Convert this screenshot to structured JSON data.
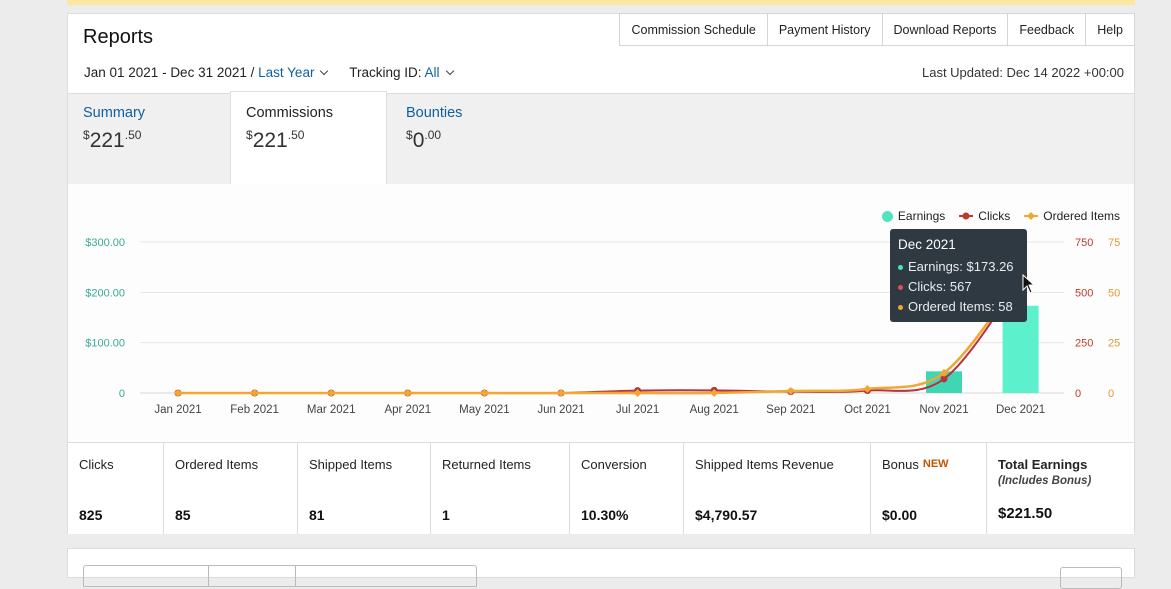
{
  "header": {
    "title": "Reports",
    "tabs": [
      "Commission Schedule",
      "Payment History",
      "Download Reports",
      "Feedback",
      "Help"
    ],
    "date_range": "Jan 01 2021 - Dec 31 2021 /",
    "period": "Last Year",
    "tracking_label": "Tracking ID:",
    "tracking_value": "All",
    "last_updated": "Last Updated: Dec 14 2022 +00:00"
  },
  "summary_tabs": [
    {
      "label": "Summary",
      "currency": "$",
      "whole": "221",
      "cents": ".50",
      "active": false
    },
    {
      "label": "Commissions",
      "currency": "$",
      "whole": "221",
      "cents": ".50",
      "active": true
    },
    {
      "label": "Bounties",
      "currency": "$",
      "whole": "0",
      "cents": ".00",
      "active": false
    }
  ],
  "legend": {
    "earnings": "Earnings",
    "clicks": "Clicks",
    "ordered": "Ordered Items"
  },
  "tooltip": {
    "title": "Dec 2021",
    "earnings": "Earnings: $173.26",
    "clicks": "Clicks: 567",
    "ordered": "Ordered Items: 58"
  },
  "colors": {
    "earnings": "#58e8c8",
    "clicks": "#c0392b",
    "ordered": "#f0a830",
    "link": "#0f5f9f"
  },
  "chart_data": {
    "type": "bar",
    "categories": [
      "Jan 2021",
      "Feb 2021",
      "Mar 2021",
      "Apr 2021",
      "May 2021",
      "Jun 2021",
      "Jul 2021",
      "Aug 2021",
      "Sep 2021",
      "Oct 2021",
      "Nov 2021",
      "Dec 2021"
    ],
    "series": [
      {
        "name": "Earnings",
        "type": "bar",
        "axis": "left",
        "values": [
          0,
          0,
          0,
          0,
          0,
          0,
          0,
          0,
          0,
          0,
          43,
          173.26
        ]
      },
      {
        "name": "Clicks",
        "type": "line",
        "axis": "right1",
        "values": [
          0,
          0,
          0,
          0,
          0,
          0,
          12,
          13,
          7,
          12,
          70,
          567
        ]
      },
      {
        "name": "Ordered Items",
        "type": "line",
        "axis": "right2",
        "values": [
          0,
          0,
          0,
          0,
          0,
          0,
          0,
          0,
          1,
          2,
          10,
          58
        ]
      }
    ],
    "left_ticks": [
      "0",
      "$100.00",
      "$200.00",
      "$300.00"
    ],
    "left_range": [
      0,
      300
    ],
    "right1_ticks": [
      "0",
      "250",
      "500",
      "750"
    ],
    "right1_range": [
      0,
      750
    ],
    "right2_ticks": [
      "0",
      "25",
      "50",
      "75"
    ],
    "right2_range": [
      0,
      75
    ],
    "grid": true,
    "legend_position": "top-right"
  },
  "stats": [
    {
      "label": "Clicks",
      "value": "825"
    },
    {
      "label": "Ordered Items",
      "value": "85"
    },
    {
      "label": "Shipped Items",
      "value": "81"
    },
    {
      "label": "Returned Items",
      "value": "1"
    },
    {
      "label": "Conversion",
      "value": "10.30%"
    },
    {
      "label": "Shipped Items Revenue",
      "value": "$4,790.57"
    },
    {
      "label": "Bonus",
      "badge": "NEW",
      "value": "$0.00"
    },
    {
      "label": "Total Earnings",
      "sublabel": "(Includes Bonus)",
      "value": "$221.50"
    }
  ]
}
